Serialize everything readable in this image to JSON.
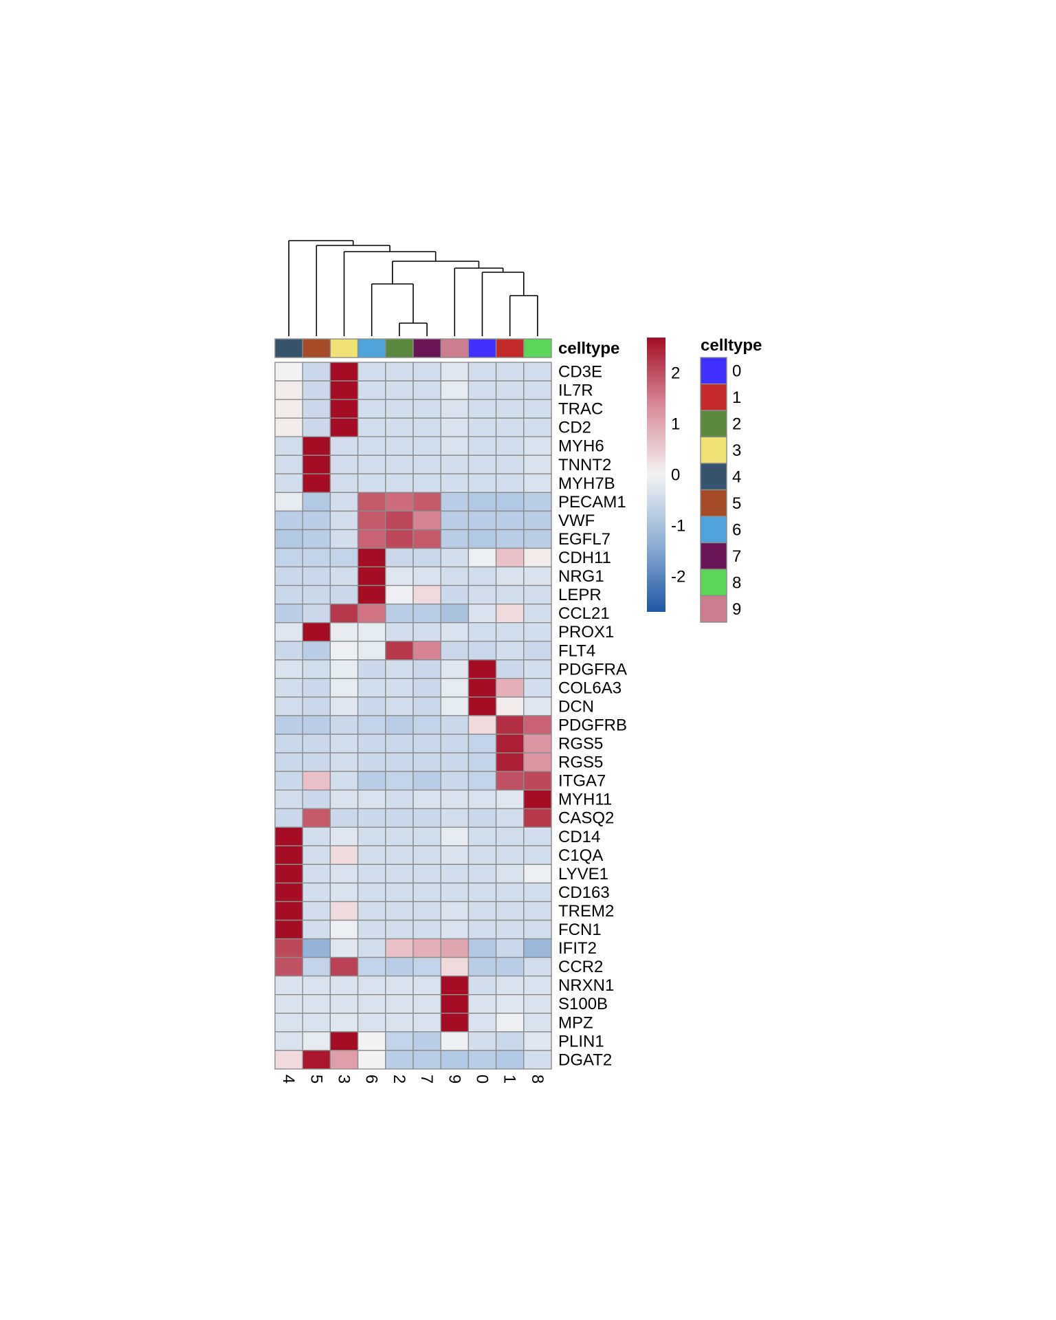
{
  "chart_data": {
    "type": "heatmap",
    "annotation_title": "celltype",
    "legend_title": "celltype",
    "colorbar_ticks": [
      2,
      1,
      0,
      -1,
      -2
    ],
    "colorbar_range": [
      -2.7,
      2.7
    ],
    "columns": [
      "4",
      "5",
      "3",
      "6",
      "2",
      "7",
      "9",
      "0",
      "1",
      "8"
    ],
    "rows": [
      "CD3E",
      "IL7R",
      "TRAC",
      "CD2",
      "MYH6",
      "TNNT2",
      "MYH7B",
      "PECAM1",
      "VWF",
      "EGFL7",
      "CDH11",
      "NRG1",
      "LEPR",
      "CCL21",
      "PROX1",
      "FLT4",
      "PDGFRA",
      "COL6A3",
      "DCN",
      "PDGFRB",
      "RGS5",
      "RGS5",
      "ITGA7",
      "MYH11",
      "CASQ2",
      "CD14",
      "C1QA",
      "LYVE1",
      "CD163",
      "TREM2",
      "FCN1",
      "IFIT2",
      "CCR2",
      "NRXN1",
      "S100B",
      "MPZ",
      "PLIN1",
      "DGAT2"
    ],
    "values": [
      [
        0.0,
        -0.6,
        2.7,
        -0.5,
        -0.5,
        -0.5,
        -0.3,
        -0.5,
        -0.5,
        -0.5
      ],
      [
        0.1,
        -0.6,
        2.7,
        -0.5,
        -0.5,
        -0.5,
        -0.2,
        -0.5,
        -0.5,
        -0.5
      ],
      [
        0.1,
        -0.6,
        2.7,
        -0.5,
        -0.5,
        -0.5,
        -0.4,
        -0.5,
        -0.5,
        -0.5
      ],
      [
        0.1,
        -0.6,
        2.7,
        -0.5,
        -0.5,
        -0.5,
        -0.4,
        -0.5,
        -0.5,
        -0.5
      ],
      [
        -0.5,
        2.7,
        -0.5,
        -0.5,
        -0.5,
        -0.5,
        -0.4,
        -0.5,
        -0.5,
        -0.4
      ],
      [
        -0.5,
        2.7,
        -0.5,
        -0.5,
        -0.5,
        -0.5,
        -0.5,
        -0.5,
        -0.5,
        -0.4
      ],
      [
        -0.5,
        2.7,
        -0.5,
        -0.5,
        -0.5,
        -0.5,
        -0.5,
        -0.5,
        -0.5,
        -0.4
      ],
      [
        -0.2,
        -0.9,
        -0.5,
        1.8,
        1.6,
        1.8,
        -0.8,
        -0.9,
        -0.9,
        -0.8
      ],
      [
        -0.8,
        -0.8,
        -0.5,
        1.8,
        2.0,
        1.3,
        -0.8,
        -0.8,
        -0.8,
        -0.8
      ],
      [
        -0.9,
        -0.8,
        -0.5,
        1.7,
        2.0,
        1.8,
        -0.8,
        -0.9,
        -0.8,
        -0.8
      ],
      [
        -0.7,
        -0.7,
        -0.7,
        2.7,
        -0.6,
        -0.6,
        -0.5,
        -0.1,
        0.6,
        0.1
      ],
      [
        -0.6,
        -0.6,
        -0.5,
        2.7,
        -0.3,
        -0.4,
        -0.5,
        -0.5,
        -0.4,
        -0.4
      ],
      [
        -0.6,
        -0.6,
        -0.6,
        2.7,
        -0.1,
        0.3,
        -0.6,
        -0.5,
        -0.5,
        -0.5
      ],
      [
        -0.8,
        -0.6,
        2.2,
        1.5,
        -0.8,
        -0.8,
        -1.0,
        -0.4,
        0.3,
        -0.5
      ],
      [
        -0.3,
        2.7,
        -0.2,
        -0.2,
        -0.5,
        -0.5,
        -0.4,
        -0.5,
        -0.5,
        -0.5
      ],
      [
        -0.6,
        -0.8,
        -0.1,
        -0.2,
        2.2,
        1.3,
        -0.6,
        -0.6,
        -0.5,
        -0.6
      ],
      [
        -0.4,
        -0.5,
        -0.2,
        -0.6,
        -0.5,
        -0.6,
        -0.3,
        2.7,
        -0.6,
        -0.5
      ],
      [
        -0.5,
        -0.6,
        -0.2,
        -0.5,
        -0.5,
        -0.6,
        -0.2,
        2.7,
        0.8,
        -0.5
      ],
      [
        -0.5,
        -0.6,
        -0.3,
        -0.6,
        -0.5,
        -0.6,
        -0.2,
        2.7,
        0.1,
        -0.3
      ],
      [
        -0.8,
        -0.8,
        -0.6,
        -0.7,
        -0.8,
        -0.7,
        -0.6,
        0.3,
        2.3,
        1.7
      ],
      [
        -0.6,
        -0.6,
        -0.5,
        -0.6,
        -0.6,
        -0.6,
        -0.6,
        -0.7,
        2.5,
        1.1
      ],
      [
        -0.6,
        -0.6,
        -0.5,
        -0.6,
        -0.6,
        -0.6,
        -0.6,
        -0.7,
        2.5,
        1.1
      ],
      [
        -0.6,
        0.6,
        -0.5,
        -0.8,
        -0.7,
        -0.8,
        -0.6,
        -0.7,
        1.9,
        2.0
      ],
      [
        -0.5,
        -0.6,
        -0.4,
        -0.4,
        -0.5,
        -0.4,
        -0.4,
        -0.4,
        -0.3,
        2.7
      ],
      [
        -0.6,
        1.8,
        -0.6,
        -0.6,
        -0.6,
        -0.6,
        -0.5,
        -0.6,
        -0.5,
        2.2
      ],
      [
        2.7,
        -0.5,
        -0.3,
        -0.5,
        -0.5,
        -0.5,
        -0.2,
        -0.5,
        -0.5,
        -0.5
      ],
      [
        2.7,
        -0.5,
        0.3,
        -0.5,
        -0.5,
        -0.5,
        -0.4,
        -0.5,
        -0.5,
        -0.5
      ],
      [
        2.7,
        -0.5,
        -0.4,
        -0.5,
        -0.5,
        -0.5,
        -0.5,
        -0.5,
        -0.4,
        -0.1
      ],
      [
        2.7,
        -0.5,
        -0.4,
        -0.5,
        -0.5,
        -0.5,
        -0.5,
        -0.5,
        -0.5,
        -0.5
      ],
      [
        2.7,
        -0.5,
        0.3,
        -0.5,
        -0.5,
        -0.5,
        -0.4,
        -0.5,
        -0.5,
        -0.5
      ],
      [
        2.7,
        -0.5,
        -0.1,
        -0.5,
        -0.5,
        -0.5,
        -0.4,
        -0.5,
        -0.5,
        -0.5
      ],
      [
        2.0,
        -1.3,
        -0.3,
        -0.5,
        0.6,
        0.8,
        0.9,
        -0.9,
        -0.6,
        -1.2
      ],
      [
        1.9,
        -0.7,
        2.1,
        -0.7,
        -0.8,
        -0.7,
        0.3,
        -0.8,
        -0.8,
        -0.5
      ],
      [
        -0.4,
        -0.4,
        -0.4,
        -0.4,
        -0.4,
        -0.4,
        2.7,
        -0.5,
        -0.4,
        -0.4
      ],
      [
        -0.4,
        -0.4,
        -0.4,
        -0.4,
        -0.4,
        -0.4,
        2.7,
        -0.4,
        -0.3,
        -0.4
      ],
      [
        -0.4,
        -0.4,
        -0.3,
        -0.4,
        -0.4,
        -0.4,
        2.7,
        -0.4,
        -0.1,
        -0.4
      ],
      [
        -0.4,
        -0.2,
        2.7,
        0.0,
        -0.7,
        -0.8,
        -0.1,
        -0.5,
        -0.6,
        -0.3
      ],
      [
        0.3,
        2.6,
        1.0,
        0.0,
        -0.8,
        -0.8,
        -0.9,
        -0.8,
        -0.9,
        -0.5
      ]
    ],
    "celltype_colors": {
      "0": "#4130FF",
      "1": "#C42A2A",
      "2": "#5B8A3F",
      "3": "#F0E274",
      "4": "#36546E",
      "5": "#A64B27",
      "6": "#4FA3DA",
      "7": "#6A1557",
      "8": "#5AD658",
      "9": "#CD7D90"
    },
    "legend_order": [
      "0",
      "1",
      "2",
      "3",
      "4",
      "5",
      "6",
      "7",
      "8",
      "9"
    ],
    "colorscale": [
      "#2057A4",
      "#F3F3F3",
      "#A50D26"
    ]
  }
}
